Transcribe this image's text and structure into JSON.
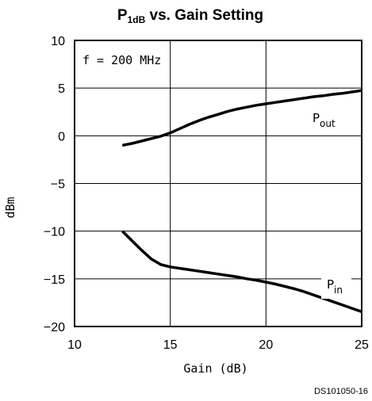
{
  "chart_data": {
    "type": "line",
    "title": {
      "prefix": "P",
      "subscript": "1dB",
      "rest": " vs. Gain Setting"
    },
    "annotation": "f = 200 MHz",
    "xlabel": "Gain (dB)",
    "ylabel": "dBm",
    "xlim": [
      10,
      25
    ],
    "ylim": [
      -20,
      10
    ],
    "x_ticks": [
      10,
      15,
      20,
      25
    ],
    "y_ticks": [
      10,
      5,
      0,
      -5,
      -10,
      -15,
      -20
    ],
    "grid": true,
    "series": [
      {
        "name": "P_out",
        "label_main": "P",
        "label_sub": "out",
        "x": [
          12.5,
          13.0,
          13.5,
          14.0,
          14.5,
          15.0,
          15.5,
          16.0,
          16.5,
          17.0,
          17.5,
          18.0,
          18.5,
          19.0,
          19.5,
          20.0,
          20.5,
          21.0,
          21.5,
          22.0,
          22.5,
          23.0,
          23.5,
          24.0,
          24.5,
          25.0
        ],
        "y": [
          -1.0,
          -0.8,
          -0.55,
          -0.3,
          -0.05,
          0.3,
          0.75,
          1.2,
          1.6,
          1.95,
          2.25,
          2.55,
          2.8,
          3.0,
          3.2,
          3.35,
          3.5,
          3.65,
          3.8,
          3.95,
          4.1,
          4.2,
          4.35,
          4.45,
          4.6,
          4.75
        ]
      },
      {
        "name": "P_in",
        "label_main": "P",
        "label_sub": "in",
        "x": [
          12.5,
          13.0,
          13.5,
          14.0,
          14.5,
          15.0,
          15.5,
          16.0,
          16.5,
          17.0,
          17.5,
          18.0,
          18.5,
          19.0,
          19.5,
          20.0,
          20.5,
          21.0,
          21.5,
          22.0,
          22.5,
          23.0,
          23.5,
          24.0,
          24.5,
          25.0
        ],
        "y": [
          -10.0,
          -11.0,
          -12.0,
          -12.9,
          -13.5,
          -13.75,
          -13.9,
          -14.05,
          -14.2,
          -14.35,
          -14.5,
          -14.65,
          -14.8,
          -15.0,
          -15.15,
          -15.35,
          -15.55,
          -15.8,
          -16.05,
          -16.35,
          -16.7,
          -17.05,
          -17.4,
          -17.75,
          -18.1,
          -18.45
        ]
      }
    ]
  },
  "figure_id": "DS101050-16"
}
